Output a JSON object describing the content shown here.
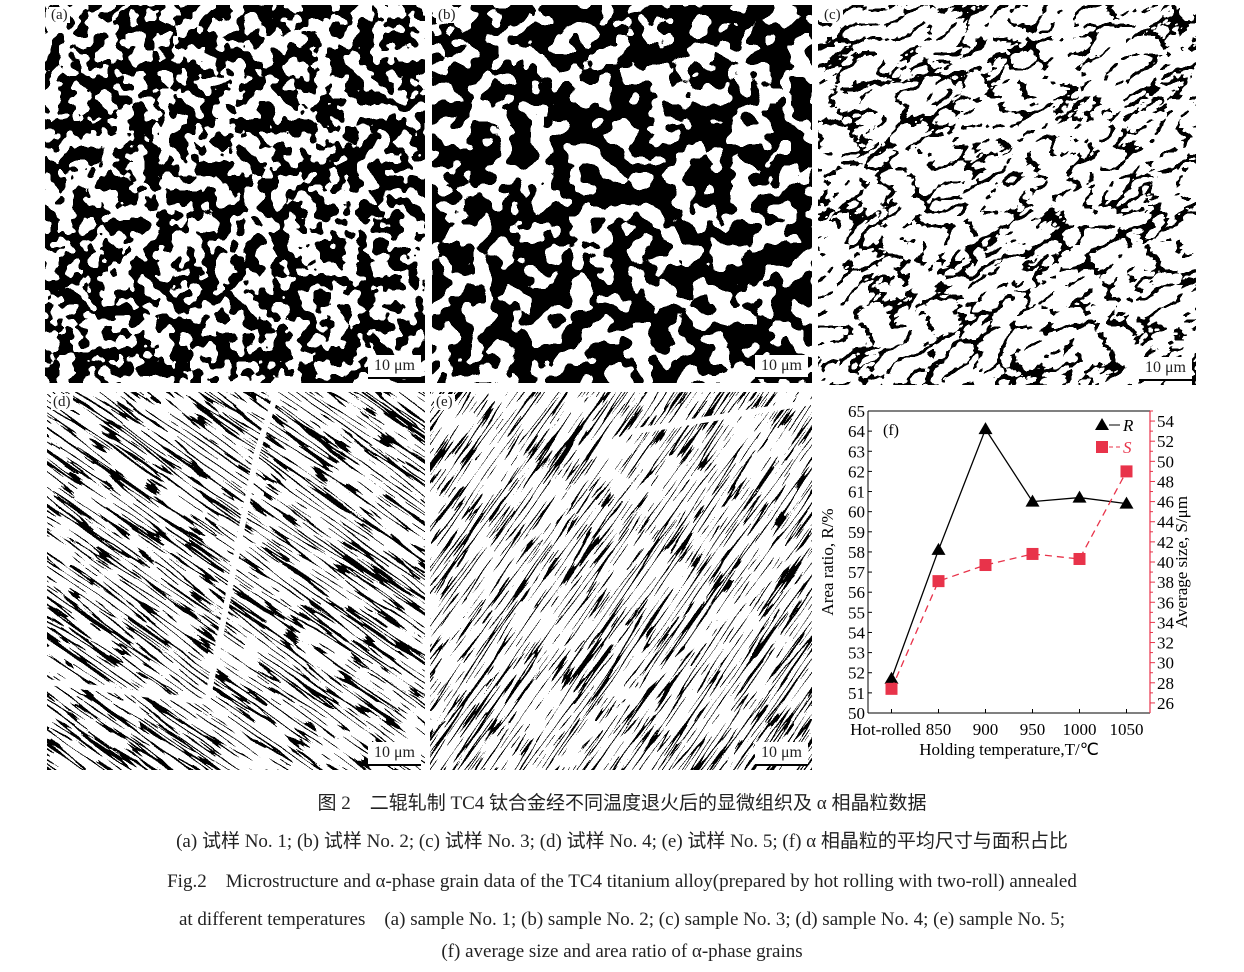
{
  "panels": [
    {
      "id": "a",
      "label": "(a)",
      "scale": "10 μm"
    },
    {
      "id": "b",
      "label": "(b)",
      "scale": "10 μm"
    },
    {
      "id": "c",
      "label": "(c)",
      "scale": "10 μm"
    },
    {
      "id": "d",
      "label": "(d)",
      "scale": "10 μm"
    },
    {
      "id": "e",
      "label": "(e)",
      "scale": "10 μm"
    }
  ],
  "chart_data": {
    "type": "line",
    "panel_label": "(f)",
    "categories": [
      "Hot-rolled",
      "850",
      "900",
      "950",
      "1000",
      "1050"
    ],
    "xlabel": "Holding temperature,T/℃",
    "ylabel": "Area ratio, R/%",
    "ylabel_right": "Average size, S/μm",
    "ylim": [
      50,
      65
    ],
    "ylim_right": [
      25,
      55
    ],
    "yticks": [
      50,
      51,
      52,
      53,
      54,
      55,
      56,
      57,
      58,
      59,
      60,
      61,
      62,
      63,
      64,
      65
    ],
    "yticks_right": [
      26,
      28,
      30,
      32,
      34,
      36,
      38,
      40,
      42,
      44,
      46,
      48,
      50,
      52,
      54
    ],
    "legend_position": "top-right",
    "grid": false,
    "series": [
      {
        "name": "R",
        "axis": "left",
        "marker": "triangle",
        "line": "solid",
        "color": "#000000",
        "values": [
          51.7,
          58.1,
          64.1,
          60.5,
          60.7,
          60.4
        ]
      },
      {
        "name": "S",
        "axis": "right",
        "marker": "square",
        "line": "dashed",
        "color": "#e8334a",
        "values": [
          27.4,
          38.1,
          39.7,
          40.8,
          40.3,
          49.0
        ]
      }
    ]
  },
  "caption": {
    "cn_title": "图 2　二辊轧制 TC4 钛合金经不同温度退火后的显微组织及 α 相晶粒数据",
    "cn_sub": "(a) 试样 No. 1; (b) 试样 No. 2; (c) 试样 No. 3; (d) 试样 No. 4; (e) 试样 No. 5; (f) α 相晶粒的平均尺寸与面积占比",
    "en_line1": "Fig.2　Microstructure and α-phase grain data of the TC4 titanium alloy(prepared by hot rolling with two-roll) annealed",
    "en_line2": "at different temperatures　(a) sample No. 1; (b) sample No. 2; (c) sample No. 3; (d) sample No. 4; (e) sample No. 5;",
    "en_line3": "(f) average size and area ratio of α-phase grains"
  }
}
